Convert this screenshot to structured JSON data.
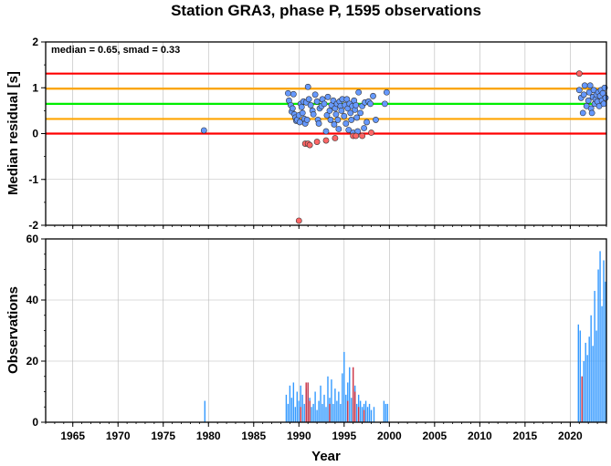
{
  "chart_data": [
    {
      "type": "scatter",
      "title": "Station GRA3, phase P, 1595 observations",
      "xlabel": "",
      "ylabel": "Median residual [s]",
      "xlim": [
        1962,
        2024
      ],
      "ylim": [
        -2,
        2
      ],
      "ytick_labels": [
        "-2",
        "-1",
        "0",
        "1",
        "2"
      ],
      "annotation": "median = 0.65, smad = 0.33",
      "grid": true,
      "reference_lines": [
        {
          "y": 1.31,
          "color": "#ff0000"
        },
        {
          "y": 0.98,
          "color": "#ffa500"
        },
        {
          "y": 0.65,
          "color": "#00ee00"
        },
        {
          "y": 0.32,
          "color": "#ffa500"
        },
        {
          "y": 0.0,
          "color": "#ff0000"
        }
      ],
      "series": [
        {
          "color": "#6699ff",
          "points": [
            [
              1979.5,
              0.07
            ],
            [
              1988.8,
              0.88
            ],
            [
              1988.9,
              0.72
            ],
            [
              1989.1,
              0.62
            ],
            [
              1989.2,
              0.48
            ],
            [
              1989.3,
              0.55
            ],
            [
              1989.4,
              0.86
            ],
            [
              1989.5,
              0.42
            ],
            [
              1989.6,
              0.35
            ],
            [
              1989.7,
              0.28
            ],
            [
              1989.8,
              0.3
            ],
            [
              1990.0,
              0.4
            ],
            [
              1990.1,
              0.25
            ],
            [
              1990.2,
              0.65
            ],
            [
              1990.3,
              0.58
            ],
            [
              1990.4,
              0.45
            ],
            [
              1990.5,
              0.7
            ],
            [
              1990.6,
              0.32
            ],
            [
              1990.7,
              0.22
            ],
            [
              1990.8,
              0.68
            ],
            [
              1990.9,
              0.3
            ],
            [
              1991.0,
              1.02
            ],
            [
              1991.1,
              0.75
            ],
            [
              1991.3,
              0.62
            ],
            [
              1991.5,
              0.5
            ],
            [
              1991.6,
              0.42
            ],
            [
              1991.8,
              0.85
            ],
            [
              1992.0,
              0.7
            ],
            [
              1992.1,
              0.3
            ],
            [
              1992.2,
              0.22
            ],
            [
              1992.3,
              0.55
            ],
            [
              1992.5,
              0.6
            ],
            [
              1992.6,
              0.75
            ],
            [
              1992.8,
              0.65
            ],
            [
              1993.0,
              0.05
            ],
            [
              1993.1,
              0.4
            ],
            [
              1993.2,
              0.8
            ],
            [
              1993.4,
              0.5
            ],
            [
              1993.5,
              0.3
            ],
            [
              1993.6,
              0.62
            ],
            [
              1993.8,
              0.72
            ],
            [
              1993.9,
              0.2
            ],
            [
              1994.0,
              0.55
            ],
            [
              1994.1,
              0.42
            ],
            [
              1994.2,
              0.65
            ],
            [
              1994.3,
              0.3
            ],
            [
              1994.4,
              0.1
            ],
            [
              1994.5,
              0.7
            ],
            [
              1994.6,
              0.6
            ],
            [
              1994.7,
              0.5
            ],
            [
              1994.8,
              0.75
            ],
            [
              1995.0,
              0.38
            ],
            [
              1995.1,
              0.62
            ],
            [
              1995.2,
              0.22
            ],
            [
              1995.3,
              0.75
            ],
            [
              1995.4,
              0.55
            ],
            [
              1995.5,
              0.08
            ],
            [
              1995.6,
              0.65
            ],
            [
              1995.7,
              0.45
            ],
            [
              1995.8,
              0.3
            ],
            [
              1995.9,
              0.6
            ],
            [
              1996.0,
              0.02
            ],
            [
              1996.1,
              0.72
            ],
            [
              1996.2,
              0.52
            ],
            [
              1996.3,
              0.62
            ],
            [
              1996.4,
              0.35
            ],
            [
              1996.5,
              0.05
            ],
            [
              1996.6,
              0.9
            ],
            [
              1996.8,
              0.45
            ],
            [
              1997.0,
              0.6
            ],
            [
              1997.2,
              0.12
            ],
            [
              1997.3,
              0.68
            ],
            [
              1997.5,
              0.25
            ],
            [
              1997.7,
              0.7
            ],
            [
              1997.9,
              0.65
            ],
            [
              1998.2,
              0.82
            ],
            [
              1998.5,
              0.3
            ],
            [
              1999.5,
              0.65
            ],
            [
              1999.7,
              0.9
            ],
            [
              2021.0,
              0.95
            ],
            [
              2021.2,
              0.78
            ],
            [
              2021.4,
              0.45
            ],
            [
              2021.5,
              0.85
            ],
            [
              2021.6,
              1.05
            ],
            [
              2021.8,
              0.6
            ],
            [
              2022.0,
              0.72
            ],
            [
              2022.1,
              0.9
            ],
            [
              2022.2,
              1.05
            ],
            [
              2022.3,
              0.55
            ],
            [
              2022.4,
              0.45
            ],
            [
              2022.5,
              0.8
            ],
            [
              2022.6,
              0.95
            ],
            [
              2022.7,
              0.65
            ],
            [
              2022.8,
              0.75
            ],
            [
              2022.9,
              0.85
            ],
            [
              2023.0,
              0.7
            ],
            [
              2023.1,
              0.9
            ],
            [
              2023.2,
              0.6
            ],
            [
              2023.3,
              0.82
            ],
            [
              2023.4,
              0.95
            ],
            [
              2023.5,
              0.72
            ],
            [
              2023.6,
              0.88
            ],
            [
              2023.7,
              0.65
            ],
            [
              2023.8,
              1.0
            ],
            [
              2023.9,
              0.78
            ]
          ]
        },
        {
          "color": "#ff6666",
          "points": [
            [
              1990.0,
              -1.9
            ],
            [
              1990.7,
              -0.22
            ],
            [
              1991.0,
              -0.22
            ],
            [
              1991.2,
              -0.25
            ],
            [
              1992.0,
              -0.18
            ],
            [
              1993.0,
              -0.15
            ],
            [
              1994.0,
              -0.1
            ],
            [
              1996.0,
              -0.05
            ],
            [
              1996.3,
              -0.05
            ],
            [
              1997.0,
              -0.05
            ],
            [
              1998.0,
              0.02
            ],
            [
              2021.0,
              1.31
            ]
          ]
        }
      ]
    },
    {
      "type": "bar",
      "title": "",
      "xlabel": "Year",
      "ylabel": "Observations",
      "xlim": [
        1962,
        2024
      ],
      "ylim": [
        0,
        60
      ],
      "xtick_labels": [
        "1965",
        "1970",
        "1975",
        "1980",
        "1985",
        "1990",
        "1995",
        "2000",
        "2005",
        "2010",
        "2015",
        "2020"
      ],
      "ytick_labels": [
        "0",
        "20",
        "40",
        "60"
      ],
      "grid": true,
      "series": [
        {
          "color": "#3399ff",
          "bars": [
            [
              1979.6,
              7
            ],
            [
              1988.6,
              9
            ],
            [
              1988.8,
              6
            ],
            [
              1989.0,
              12
            ],
            [
              1989.2,
              8
            ],
            [
              1989.4,
              13
            ],
            [
              1989.6,
              5
            ],
            [
              1989.8,
              10
            ],
            [
              1990.0,
              7
            ],
            [
              1990.2,
              12
            ],
            [
              1990.4,
              9
            ],
            [
              1990.6,
              6
            ],
            [
              1990.8,
              11
            ],
            [
              1991.0,
              13
            ],
            [
              1991.2,
              8
            ],
            [
              1991.4,
              5
            ],
            [
              1991.6,
              6
            ],
            [
              1991.8,
              10
            ],
            [
              1992.0,
              4
            ],
            [
              1992.2,
              7
            ],
            [
              1992.4,
              12
            ],
            [
              1992.6,
              6
            ],
            [
              1992.8,
              9
            ],
            [
              1993.0,
              5
            ],
            [
              1993.2,
              15
            ],
            [
              1993.4,
              8
            ],
            [
              1993.6,
              14
            ],
            [
              1993.8,
              6
            ],
            [
              1994.0,
              11
            ],
            [
              1994.2,
              7
            ],
            [
              1994.4,
              10
            ],
            [
              1994.6,
              6
            ],
            [
              1994.8,
              16
            ],
            [
              1995.0,
              23
            ],
            [
              1995.2,
              9
            ],
            [
              1995.4,
              13
            ],
            [
              1995.6,
              18
            ],
            [
              1995.8,
              8
            ],
            [
              1996.0,
              11
            ],
            [
              1996.2,
              12
            ],
            [
              1996.4,
              6
            ],
            [
              1996.6,
              9
            ],
            [
              1996.8,
              7
            ],
            [
              1997.0,
              5
            ],
            [
              1997.2,
              6
            ],
            [
              1997.4,
              7
            ],
            [
              1997.6,
              5
            ],
            [
              1997.8,
              6
            ],
            [
              1998.0,
              4
            ],
            [
              1998.3,
              5
            ],
            [
              1999.4,
              7
            ],
            [
              1999.6,
              6
            ],
            [
              1999.8,
              6
            ],
            [
              2020.9,
              32
            ],
            [
              2021.1,
              30
            ],
            [
              2021.3,
              15
            ],
            [
              2021.5,
              20
            ],
            [
              2021.7,
              26
            ],
            [
              2021.9,
              22
            ],
            [
              2022.1,
              28
            ],
            [
              2022.3,
              35
            ],
            [
              2022.5,
              25
            ],
            [
              2022.7,
              43
            ],
            [
              2022.9,
              30
            ],
            [
              2023.1,
              50
            ],
            [
              2023.3,
              56
            ],
            [
              2023.5,
              38
            ],
            [
              2023.7,
              53
            ],
            [
              2023.9,
              46
            ]
          ]
        },
        {
          "color": "#cc3344",
          "bars": [
            [
              1990.2,
              5
            ],
            [
              1990.8,
              13
            ],
            [
              1991.0,
              13
            ],
            [
              1991.2,
              7
            ],
            [
              1993.4,
              6
            ],
            [
              1995.4,
              7
            ],
            [
              1996.0,
              18
            ],
            [
              1996.2,
              10
            ],
            [
              1996.6,
              5
            ],
            [
              1997.2,
              4
            ],
            [
              2021.3,
              15
            ]
          ]
        }
      ]
    }
  ]
}
